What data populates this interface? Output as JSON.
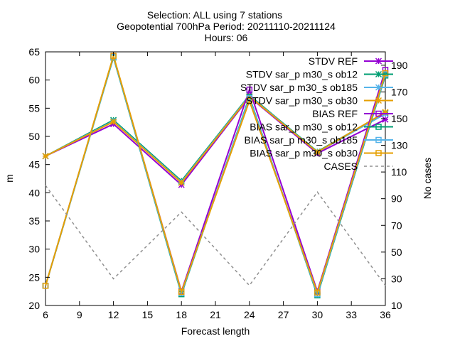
{
  "chart_data": {
    "type": "line",
    "title_lines": [
      "Selection: ALL using     7 stations",
      "Geopotential 700hPa   Period: 20211110-20211124",
      "Hours: 06"
    ],
    "xlabel": "Forecast length",
    "ylabel": "m",
    "y2label": "No cases",
    "xlim": [
      6,
      36
    ],
    "ylim": [
      20,
      65
    ],
    "y2lim": [
      10,
      200
    ],
    "xticks": [
      "6",
      "9",
      "12",
      "15",
      "18",
      "21",
      "24",
      "27",
      "30",
      "33",
      "36"
    ],
    "yticks": [
      "20",
      "25",
      "30",
      "35",
      "40",
      "45",
      "50",
      "55",
      "60",
      "65"
    ],
    "y2ticks": [
      "10",
      "30",
      "50",
      "70",
      "90",
      "110",
      "130",
      "150",
      "170",
      "190"
    ],
    "legend_position": "top-right",
    "x": [
      6,
      12,
      18,
      24,
      30,
      36
    ],
    "series": [
      {
        "name": "STDV REF",
        "axis": "y1",
        "color": "#9400d3",
        "marker": "star",
        "dash": false,
        "values": [
          46.5,
          52.2,
          41.4,
          57.0,
          47.0,
          53.0
        ]
      },
      {
        "name": "STDV sar_p m30_s ob12",
        "axis": "y1",
        "color": "#009e73",
        "marker": "star",
        "dash": false,
        "values": [
          46.5,
          52.9,
          42.1,
          57.3,
          47.3,
          54.2
        ]
      },
      {
        "name": "STDV sar_p m30_s ob185",
        "axis": "y1",
        "color": "#56b4e9",
        "marker": "star",
        "dash": false,
        "values": [
          46.5,
          52.7,
          41.9,
          57.2,
          47.2,
          54.0
        ]
      },
      {
        "name": "STDV sar_p m30_s ob30",
        "axis": "y1",
        "color": "#e69f00",
        "marker": "star",
        "dash": false,
        "values": [
          46.5,
          52.6,
          41.8,
          57.1,
          47.2,
          54.3
        ]
      },
      {
        "name": "BIAS REF",
        "axis": "y1",
        "color": "#9400d3",
        "marker": "square",
        "dash": false,
        "values": [
          23.5,
          64.2,
          22.5,
          58.3,
          22.5,
          61.8
        ]
      },
      {
        "name": "BIAS sar_p m30_s ob12",
        "axis": "y1",
        "color": "#009e73",
        "marker": "square",
        "dash": false,
        "values": [
          23.5,
          64.0,
          22.0,
          57.0,
          21.8,
          60.8
        ]
      },
      {
        "name": "BIAS sar_p m30_s ob185",
        "axis": "y1",
        "color": "#56b4e9",
        "marker": "square",
        "dash": false,
        "values": [
          23.5,
          64.1,
          22.2,
          56.8,
          22.0,
          61.0
        ]
      },
      {
        "name": "BIAS sar_p m30_s ob30",
        "axis": "y1",
        "color": "#e69f00",
        "marker": "square",
        "dash": false,
        "values": [
          23.5,
          64.3,
          22.4,
          56.3,
          22.3,
          61.2
        ]
      },
      {
        "name": "CASES",
        "axis": "y2",
        "color": "#909090",
        "marker": "none",
        "dash": true,
        "values": [
          100,
          30,
          80,
          25,
          95,
          25
        ]
      }
    ]
  }
}
